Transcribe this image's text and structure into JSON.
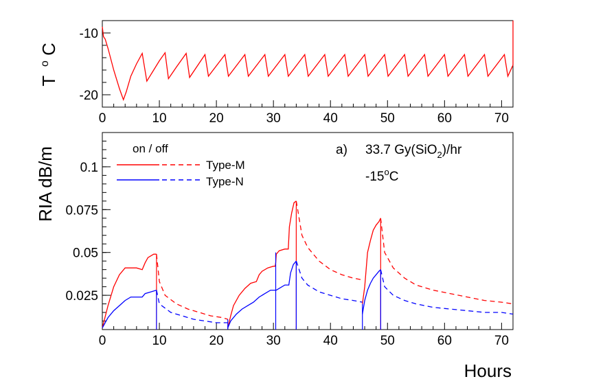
{
  "colors": {
    "type_m": "#ff0000",
    "type_n": "#0000ff",
    "axis": "#000000"
  },
  "chart_data": [
    {
      "type": "line",
      "panel": "top",
      "ylabel": "T",
      "ylabel_unit": "oC",
      "xlim": [
        0,
        72
      ],
      "ylim": [
        -22,
        -8
      ],
      "x_ticks": [
        "0",
        "10",
        "20",
        "30",
        "40",
        "50",
        "60",
        "70"
      ],
      "y_ticks": [
        "-10",
        "-20"
      ],
      "grid": false,
      "series": [
        {
          "color": "#ff0000",
          "points": [
            [
              0,
              -9
            ],
            [
              0.2,
              -10.6
            ],
            [
              0.5,
              -11
            ],
            [
              1,
              -12.5
            ],
            [
              2,
              -16
            ],
            [
              3,
              -19
            ],
            [
              3.7,
              -20.8
            ],
            [
              4.2,
              -19.5
            ],
            [
              5,
              -17
            ],
            [
              6,
              -15
            ],
            [
              7,
              -13.3
            ],
            [
              7.8,
              -17.8
            ],
            [
              9,
              -16
            ],
            [
              10,
              -14.5
            ],
            [
              11,
              -13.2
            ],
            [
              11.6,
              -17.4
            ],
            [
              13,
              -15.5
            ],
            [
              14.7,
              -13.3
            ],
            [
              15.3,
              -17.2
            ],
            [
              18,
              -13.5
            ],
            [
              18.6,
              -17
            ],
            [
              21.5,
              -13.5
            ],
            [
              22.1,
              -17
            ],
            [
              25,
              -13.5
            ],
            [
              25.6,
              -17
            ],
            [
              28.5,
              -13.5
            ],
            [
              29.1,
              -17
            ],
            [
              32,
              -13.5
            ],
            [
              32.6,
              -17
            ],
            [
              35.5,
              -13.5
            ],
            [
              36.1,
              -17
            ],
            [
              39,
              -13.5
            ],
            [
              39.6,
              -17
            ],
            [
              42.5,
              -13.5
            ],
            [
              43.1,
              -17
            ],
            [
              46,
              -13.5
            ],
            [
              46.6,
              -17
            ],
            [
              49.5,
              -13.5
            ],
            [
              50.1,
              -17
            ],
            [
              53,
              -13.5
            ],
            [
              53.6,
              -17
            ],
            [
              56.5,
              -13.5
            ],
            [
              57.1,
              -17
            ],
            [
              60,
              -13.5
            ],
            [
              60.6,
              -17
            ],
            [
              63.5,
              -13.5
            ],
            [
              64.1,
              -17
            ],
            [
              67,
              -13.5
            ],
            [
              67.6,
              -17
            ],
            [
              70.5,
              -13.5
            ],
            [
              71.1,
              -17
            ],
            [
              72,
              -15.2
            ]
          ]
        }
      ]
    },
    {
      "type": "line",
      "panel": "bottom",
      "ylabel": "RIA dB/m",
      "xlabel": "Hours",
      "xlim": [
        0,
        72
      ],
      "ylim": [
        0.005,
        0.12
      ],
      "x_ticks": [
        "0",
        "10",
        "20",
        "30",
        "40",
        "50",
        "60",
        "70"
      ],
      "y_ticks": [
        "0.025",
        "0.05",
        "0.075",
        "0.1"
      ],
      "grid": false,
      "legend": {
        "header": "on / off",
        "entries": [
          "Type-M",
          "Type-N"
        ],
        "placement": "top-left"
      },
      "annotation": {
        "line1_prefix": "a)",
        "line1_main": "33.7 Gy(SiO",
        "line1_sub": "2",
        "line1_suffix": ")/hr",
        "line2_main": "-15",
        "line2_sup": "o",
        "line2_suffix": "C"
      },
      "series": [
        {
          "name": "Type-M",
          "color": "#ff0000",
          "on_segments": [
            [
              [
                0,
                0.006
              ],
              [
                1,
                0.019
              ],
              [
                2,
                0.03
              ],
              [
                3,
                0.037
              ],
              [
                4,
                0.041
              ],
              [
                5,
                0.041
              ],
              [
                6,
                0.041
              ],
              [
                7,
                0.04
              ],
              [
                7.5,
                0.044
              ],
              [
                8,
                0.047
              ],
              [
                9,
                0.049
              ],
              [
                9.5,
                0.049
              ]
            ],
            [
              [
                22,
                0.006
              ],
              [
                22.5,
                0.013
              ],
              [
                23,
                0.019
              ],
              [
                24,
                0.025
              ],
              [
                25,
                0.029
              ],
              [
                26,
                0.032
              ],
              [
                27,
                0.033
              ],
              [
                27.5,
                0.037
              ],
              [
                28,
                0.039
              ],
              [
                29,
                0.041
              ],
              [
                30,
                0.042
              ],
              [
                30.3,
                0.042
              ],
              [
                30.4,
                0.044
              ],
              [
                30.5,
                0.049
              ],
              [
                31,
                0.051
              ],
              [
                32,
                0.052
              ],
              [
                32.6,
                0.052
              ],
              [
                32.8,
                0.065
              ],
              [
                33.2,
                0.073
              ],
              [
                33.6,
                0.079
              ],
              [
                34,
                0.08
              ]
            ],
            [
              [
                45.6,
                0.02
              ],
              [
                46,
                0.03
              ],
              [
                46.5,
                0.05
              ],
              [
                47,
                0.057
              ],
              [
                47.5,
                0.063
              ],
              [
                48,
                0.066
              ],
              [
                48.5,
                0.068
              ],
              [
                48.8,
                0.07
              ]
            ]
          ],
          "off_segments": [
            [
              [
                9.5,
                0.049
              ],
              [
                10,
                0.033
              ],
              [
                11,
                0.025
              ],
              [
                13,
                0.02
              ],
              [
                15,
                0.017
              ],
              [
                17,
                0.015
              ],
              [
                19,
                0.013
              ],
              [
                21,
                0.012
              ],
              [
                22,
                0.011
              ]
            ],
            [
              [
                34,
                0.08
              ],
              [
                35,
                0.06
              ],
              [
                36,
                0.053
              ],
              [
                38,
                0.045
              ],
              [
                40,
                0.04
              ],
              [
                42,
                0.037
              ],
              [
                44,
                0.035
              ],
              [
                45.6,
                0.034
              ]
            ],
            [
              [
                48.8,
                0.07
              ],
              [
                49.5,
                0.05
              ],
              [
                51,
                0.041
              ],
              [
                53,
                0.035
              ],
              [
                55,
                0.031
              ],
              [
                58,
                0.028
              ],
              [
                61,
                0.026
              ],
              [
                64,
                0.024
              ],
              [
                67,
                0.022
              ],
              [
                70,
                0.021
              ],
              [
                72,
                0.02
              ]
            ]
          ]
        },
        {
          "name": "Type-N",
          "color": "#0000ff",
          "on_segments": [
            [
              [
                0,
                0.006
              ],
              [
                1,
                0.012
              ],
              [
                2,
                0.016
              ],
              [
                3,
                0.019
              ],
              [
                4,
                0.022
              ],
              [
                5,
                0.024
              ],
              [
                6,
                0.024
              ],
              [
                7,
                0.024
              ],
              [
                7.5,
                0.026
              ],
              [
                8.5,
                0.027
              ],
              [
                9.5,
                0.028
              ]
            ],
            [
              [
                22,
                0.006
              ],
              [
                22.5,
                0.01
              ],
              [
                23.5,
                0.014
              ],
              [
                24.5,
                0.017
              ],
              [
                25.5,
                0.019
              ],
              [
                26.5,
                0.021
              ],
              [
                27.5,
                0.024
              ],
              [
                28.5,
                0.026
              ],
              [
                29.5,
                0.028
              ],
              [
                30.4,
                0.028
              ],
              [
                30.5,
                0.028
              ],
              [
                31,
                0.029
              ],
              [
                32,
                0.031
              ],
              [
                32.7,
                0.031
              ],
              [
                33,
                0.038
              ],
              [
                33.5,
                0.043
              ],
              [
                34,
                0.045
              ]
            ],
            [
              [
                45.6,
                0.014
              ],
              [
                46,
                0.022
              ],
              [
                46.5,
                0.028
              ],
              [
                47,
                0.032
              ],
              [
                47.5,
                0.035
              ],
              [
                48,
                0.037
              ],
              [
                48.5,
                0.039
              ],
              [
                48.8,
                0.04
              ]
            ]
          ],
          "off_segments": [
            [
              [
                9.5,
                0.028
              ],
              [
                10,
                0.02
              ],
              [
                12,
                0.015
              ],
              [
                14,
                0.013
              ],
              [
                16,
                0.011
              ],
              [
                18,
                0.01
              ],
              [
                20,
                0.009
              ],
              [
                22,
                0.009
              ]
            ],
            [
              [
                34,
                0.045
              ],
              [
                35,
                0.035
              ],
              [
                36,
                0.031
              ],
              [
                38,
                0.027
              ],
              [
                40,
                0.025
              ],
              [
                42,
                0.023
              ],
              [
                44,
                0.022
              ],
              [
                45.6,
                0.021
              ]
            ],
            [
              [
                48.8,
                0.04
              ],
              [
                49.5,
                0.03
              ],
              [
                51,
                0.025
              ],
              [
                53,
                0.022
              ],
              [
                55,
                0.02
              ],
              [
                58,
                0.018
              ],
              [
                61,
                0.017
              ],
              [
                64,
                0.016
              ],
              [
                67,
                0.015
              ],
              [
                70,
                0.015
              ],
              [
                72,
                0.014
              ]
            ]
          ]
        }
      ]
    }
  ]
}
